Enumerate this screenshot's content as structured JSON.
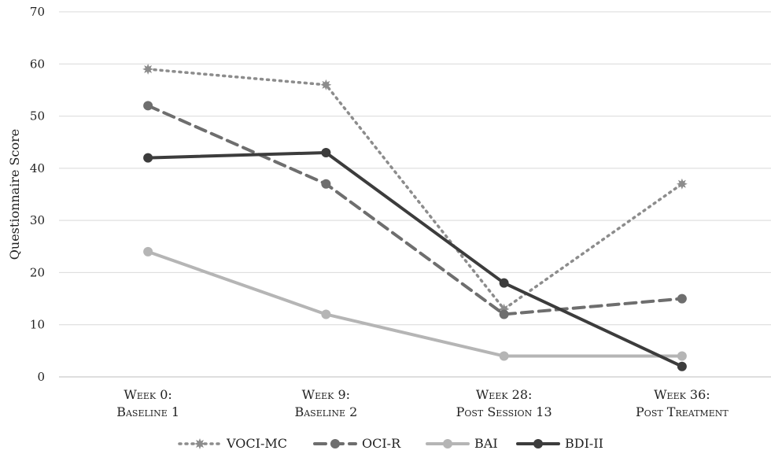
{
  "chart_data": {
    "type": "line",
    "ylabel": "Questionnaire Score",
    "ylim": [
      0,
      70
    ],
    "yticks": [
      0,
      10,
      20,
      30,
      40,
      50,
      60,
      70
    ],
    "grid": true,
    "legend_position": "bottom",
    "categories": [
      [
        "Week 0:",
        "Baseline 1"
      ],
      [
        "Week 9:",
        "Baseline 2"
      ],
      [
        "Week 28:",
        "Post Session 13"
      ],
      [
        "Week 36:",
        "Post Treatment"
      ]
    ],
    "series": [
      {
        "name": "VOCI-MC",
        "values": [
          59,
          56,
          13,
          37
        ],
        "color": "#8c8c8c",
        "style": "dotted",
        "marker": "star"
      },
      {
        "name": "OCI-R",
        "values": [
          52,
          37,
          12,
          15
        ],
        "color": "#6e6e6e",
        "style": "dashed",
        "marker": "circle"
      },
      {
        "name": "BAI",
        "values": [
          24,
          12,
          4,
          4
        ],
        "color": "#b5b5b5",
        "style": "solid",
        "marker": "circle"
      },
      {
        "name": "BDI-II",
        "values": [
          42,
          43,
          18,
          2
        ],
        "color": "#3c3c3c",
        "style": "solid",
        "marker": "circle"
      }
    ]
  }
}
